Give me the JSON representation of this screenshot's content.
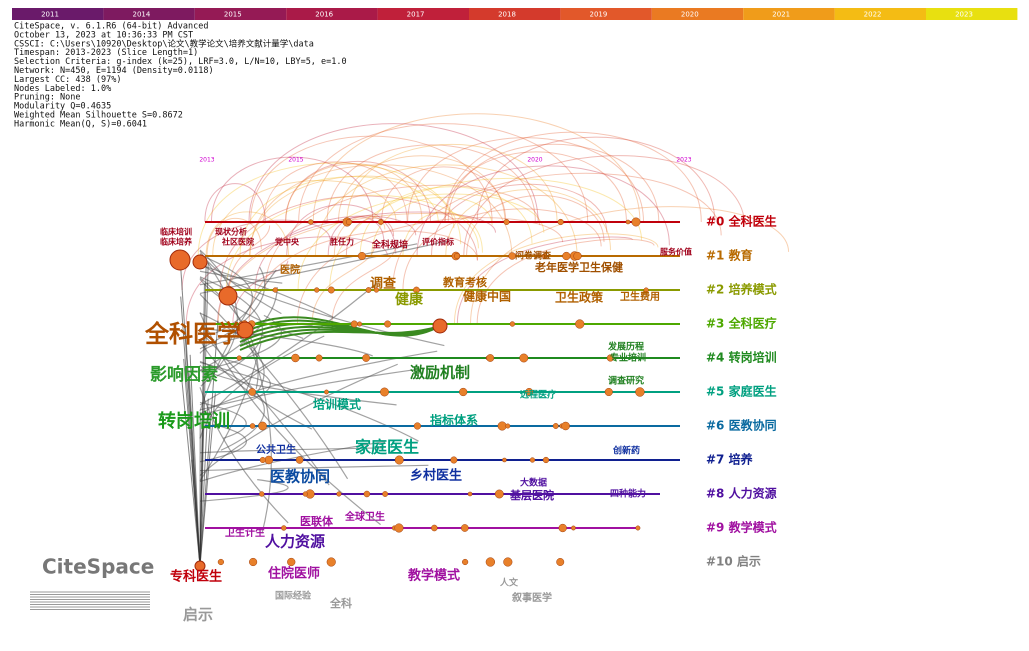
{
  "year_bar": [
    "2011",
    "2014",
    "2015",
    "2016",
    "2017",
    "2018",
    "2019",
    "2020",
    "2021",
    "2022",
    "2023"
  ],
  "info": [
    "CiteSpace, v. 6.1.R6 (64-bit) Advanced",
    "October 13, 2023 at 10:36:33 PM CST",
    "CSSCI: C:\\Users\\10920\\Desktop\\论文\\教学论文\\培养文献计量学\\data",
    "Timespan: 2013-2023 (Slice Length=1)",
    "Selection Criteria: g-index (k=25), LRF=3.0, L/N=10, LBY=5, e=1.0",
    "Network: N=450, E=1194 (Density=0.0118)",
    "Largest CC: 438 (97%)",
    "Nodes Labeled: 1.0%",
    "Pruning: None",
    "Modularity Q=0.4635",
    "Weighted Mean Silhouette S=0.8672",
    "Harmonic Mean(Q, S)=0.6041"
  ],
  "timeline_years": [
    "2013",
    "2015",
    "2020",
    "2023"
  ],
  "clusters": [
    {
      "label": "#0 全科医生",
      "color": "#c0000b"
    },
    {
      "label": "#1 教育",
      "color": "#b86a00"
    },
    {
      "label": "#2 培养模式",
      "color": "#8a9a00"
    },
    {
      "label": "#3 全科医疗",
      "color": "#4ea800"
    },
    {
      "label": "#4 转岗培训",
      "color": "#1f8a1f"
    },
    {
      "label": "#5 家庭医生",
      "color": "#00a080"
    },
    {
      "label": "#6 医教协同",
      "color": "#0a6aa0"
    },
    {
      "label": "#7 培养",
      "color": "#102090"
    },
    {
      "label": "#8 人力资源",
      "color": "#5010a0"
    },
    {
      "label": "#9 教学模式",
      "color": "#a010a0"
    },
    {
      "label": "#10 启示",
      "color": "#808080"
    }
  ],
  "keywords": [
    "临床培训",
    "临床培养",
    "现状分析",
    "社区医院",
    "党中央",
    "胜任力",
    "全科规培",
    "评价指标",
    "问卷调查",
    "服务价值",
    "医院",
    "调查",
    "教育考核",
    "老年医学卫生保健",
    "健康中国",
    "卫生政策",
    "卫生费用",
    "全科医学",
    "健康",
    "影响因素",
    "转岗培训",
    "家庭医生",
    "激励机制",
    "指标体系",
    "培训模式",
    "医教协同",
    "乡村医生",
    "基层医院",
    "人力资源",
    "医联体",
    "全球卫生",
    "卫生计生",
    "专科医生",
    "住院医师",
    "教学模式",
    "启示",
    "全科",
    "国际经验",
    "叙事医学",
    "人文",
    "发展历程",
    "专业培训",
    "调查研究",
    "创新药",
    "四种能力",
    "公共卫生",
    "远程医疗",
    "大数据"
  ],
  "logo": "CiteSpace"
}
